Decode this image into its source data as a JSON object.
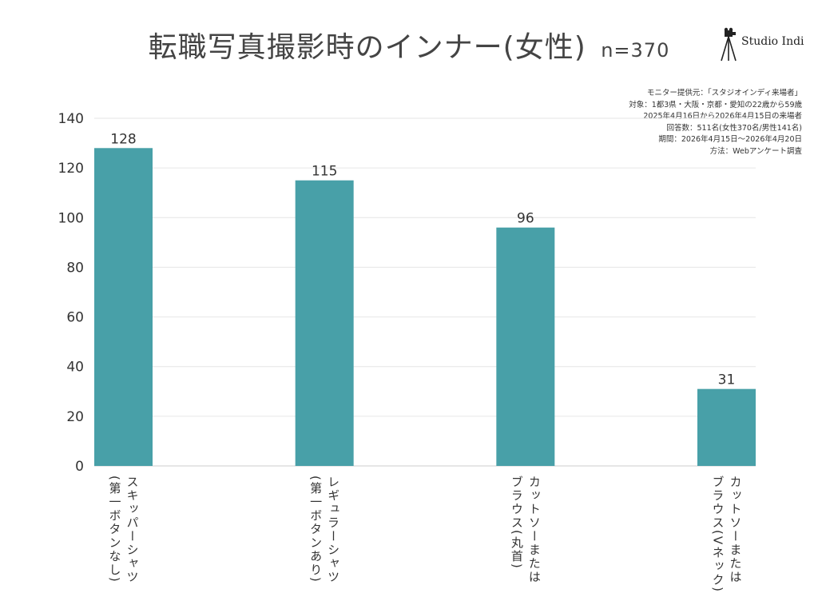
{
  "title": "転職写真撮影時のインナー(女性)",
  "sample_size": "n=370",
  "brand": {
    "name": "Studio Indi",
    "icon": "camera-tripod-icon"
  },
  "notes": [
    "モニター提供元：「スタジオインディ来場者」",
    "対象：1都3県・大阪・京都・愛知の22歳から59歳",
    "2025年4月16日から2026年4月15日の来場者",
    "回答数：511名(女性370名/男性141名)",
    "期間：2026年4月15日〜2026年4月20日",
    "方法：Webアンケート調査"
  ],
  "colors": {
    "bar": "#48a0a8",
    "grid": "#e6e6e6",
    "axis": "#cccccc"
  },
  "chart_data": {
    "type": "bar",
    "categories": [
      "スキッパーシャツ\n(第一ボタンなし)",
      "レギュラーシャツ\n(第一ボタンあり)",
      "カットソーまたは\nブラウス(丸首)",
      "カットソーまたは\nブラウス(Vネック)"
    ],
    "values": [
      128,
      115,
      96,
      31
    ],
    "ylim": [
      0,
      140
    ],
    "yticks": [
      0,
      20,
      40,
      60,
      80,
      100,
      120,
      140
    ],
    "grid": true,
    "data_labels": true
  }
}
